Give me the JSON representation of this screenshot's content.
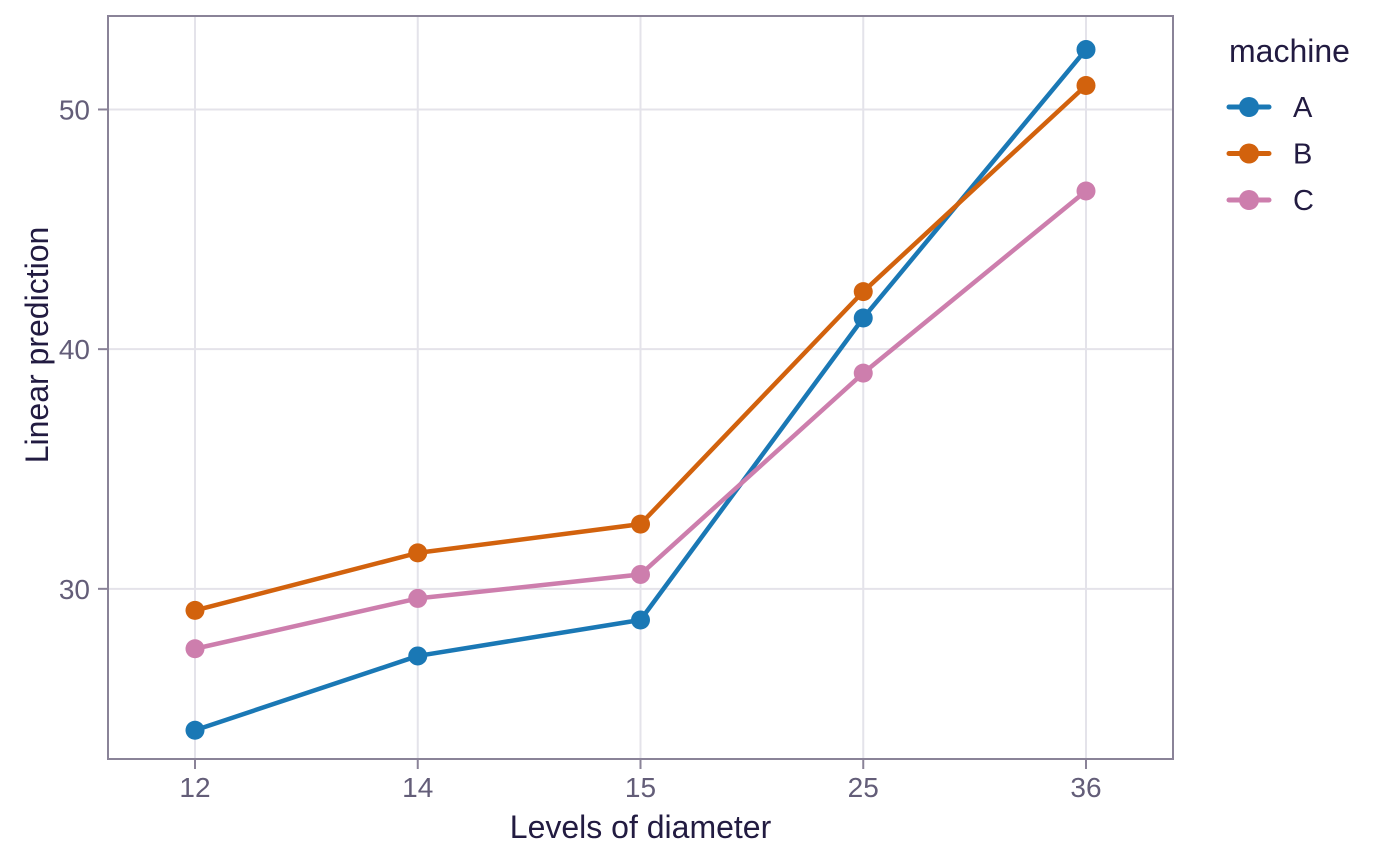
{
  "chart_data": {
    "type": "line",
    "title": "",
    "xlabel": "Levels of diameter",
    "ylabel": "Linear prediction",
    "categories": [
      "12",
      "14",
      "15",
      "25",
      "36"
    ],
    "x_axis_type": "categorical-equally-spaced",
    "y_tick_labels": [
      "30",
      "40",
      "50"
    ],
    "y_tick_values": [
      30,
      40,
      50
    ],
    "ylim": [
      22.9,
      53.9
    ],
    "grid": true,
    "marker": "circle",
    "legend": {
      "title": "machine",
      "position": "right"
    },
    "series": [
      {
        "name": "A",
        "color": "#1a78b5",
        "values": [
          24.1,
          27.2,
          28.7,
          41.3,
          52.5
        ]
      },
      {
        "name": "B",
        "color": "#d2620d",
        "values": [
          29.1,
          31.5,
          32.7,
          42.4,
          51.0
        ]
      },
      {
        "name": "C",
        "color": "#cd7ead",
        "values": [
          27.5,
          29.6,
          30.6,
          39.0,
          46.6
        ]
      }
    ]
  },
  "theme": {
    "background": "#ffffff",
    "panel_border": "#8a8398",
    "grid_color": "#e4e3ea",
    "tick_color": "#8a8398",
    "tick_label_color": "#635d78",
    "axis_title_color": "#221b41",
    "legend_title_color": "#221b41",
    "legend_label_color": "#221b41"
  }
}
